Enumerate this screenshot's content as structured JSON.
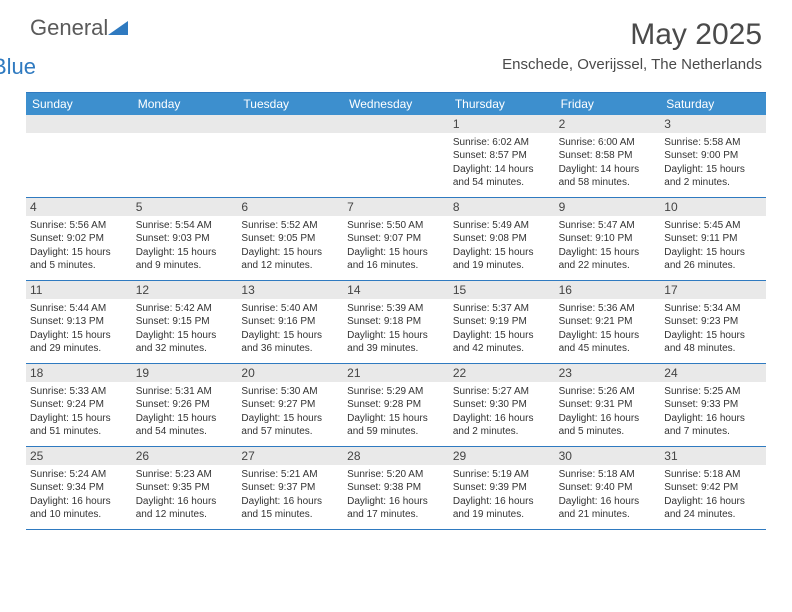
{
  "brand": {
    "part1": "General",
    "part2": "Blue"
  },
  "title": "May 2025",
  "location": "Enschede, Overijssel, The Netherlands",
  "colors": {
    "header_bg": "#3d8fce",
    "border": "#2f7ac0",
    "daynum_bg": "#e9e9e9",
    "text": "#333333",
    "title": "#4a4a4a"
  },
  "day_names": [
    "Sunday",
    "Monday",
    "Tuesday",
    "Wednesday",
    "Thursday",
    "Friday",
    "Saturday"
  ],
  "weeks": [
    [
      null,
      null,
      null,
      null,
      {
        "n": "1",
        "sr": "6:02 AM",
        "ss": "8:57 PM",
        "dl": "14 hours and 54 minutes."
      },
      {
        "n": "2",
        "sr": "6:00 AM",
        "ss": "8:58 PM",
        "dl": "14 hours and 58 minutes."
      },
      {
        "n": "3",
        "sr": "5:58 AM",
        "ss": "9:00 PM",
        "dl": "15 hours and 2 minutes."
      }
    ],
    [
      {
        "n": "4",
        "sr": "5:56 AM",
        "ss": "9:02 PM",
        "dl": "15 hours and 5 minutes."
      },
      {
        "n": "5",
        "sr": "5:54 AM",
        "ss": "9:03 PM",
        "dl": "15 hours and 9 minutes."
      },
      {
        "n": "6",
        "sr": "5:52 AM",
        "ss": "9:05 PM",
        "dl": "15 hours and 12 minutes."
      },
      {
        "n": "7",
        "sr": "5:50 AM",
        "ss": "9:07 PM",
        "dl": "15 hours and 16 minutes."
      },
      {
        "n": "8",
        "sr": "5:49 AM",
        "ss": "9:08 PM",
        "dl": "15 hours and 19 minutes."
      },
      {
        "n": "9",
        "sr": "5:47 AM",
        "ss": "9:10 PM",
        "dl": "15 hours and 22 minutes."
      },
      {
        "n": "10",
        "sr": "5:45 AM",
        "ss": "9:11 PM",
        "dl": "15 hours and 26 minutes."
      }
    ],
    [
      {
        "n": "11",
        "sr": "5:44 AM",
        "ss": "9:13 PM",
        "dl": "15 hours and 29 minutes."
      },
      {
        "n": "12",
        "sr": "5:42 AM",
        "ss": "9:15 PM",
        "dl": "15 hours and 32 minutes."
      },
      {
        "n": "13",
        "sr": "5:40 AM",
        "ss": "9:16 PM",
        "dl": "15 hours and 36 minutes."
      },
      {
        "n": "14",
        "sr": "5:39 AM",
        "ss": "9:18 PM",
        "dl": "15 hours and 39 minutes."
      },
      {
        "n": "15",
        "sr": "5:37 AM",
        "ss": "9:19 PM",
        "dl": "15 hours and 42 minutes."
      },
      {
        "n": "16",
        "sr": "5:36 AM",
        "ss": "9:21 PM",
        "dl": "15 hours and 45 minutes."
      },
      {
        "n": "17",
        "sr": "5:34 AM",
        "ss": "9:23 PM",
        "dl": "15 hours and 48 minutes."
      }
    ],
    [
      {
        "n": "18",
        "sr": "5:33 AM",
        "ss": "9:24 PM",
        "dl": "15 hours and 51 minutes."
      },
      {
        "n": "19",
        "sr": "5:31 AM",
        "ss": "9:26 PM",
        "dl": "15 hours and 54 minutes."
      },
      {
        "n": "20",
        "sr": "5:30 AM",
        "ss": "9:27 PM",
        "dl": "15 hours and 57 minutes."
      },
      {
        "n": "21",
        "sr": "5:29 AM",
        "ss": "9:28 PM",
        "dl": "15 hours and 59 minutes."
      },
      {
        "n": "22",
        "sr": "5:27 AM",
        "ss": "9:30 PM",
        "dl": "16 hours and 2 minutes."
      },
      {
        "n": "23",
        "sr": "5:26 AM",
        "ss": "9:31 PM",
        "dl": "16 hours and 5 minutes."
      },
      {
        "n": "24",
        "sr": "5:25 AM",
        "ss": "9:33 PM",
        "dl": "16 hours and 7 minutes."
      }
    ],
    [
      {
        "n": "25",
        "sr": "5:24 AM",
        "ss": "9:34 PM",
        "dl": "16 hours and 10 minutes."
      },
      {
        "n": "26",
        "sr": "5:23 AM",
        "ss": "9:35 PM",
        "dl": "16 hours and 12 minutes."
      },
      {
        "n": "27",
        "sr": "5:21 AM",
        "ss": "9:37 PM",
        "dl": "16 hours and 15 minutes."
      },
      {
        "n": "28",
        "sr": "5:20 AM",
        "ss": "9:38 PM",
        "dl": "16 hours and 17 minutes."
      },
      {
        "n": "29",
        "sr": "5:19 AM",
        "ss": "9:39 PM",
        "dl": "16 hours and 19 minutes."
      },
      {
        "n": "30",
        "sr": "5:18 AM",
        "ss": "9:40 PM",
        "dl": "16 hours and 21 minutes."
      },
      {
        "n": "31",
        "sr": "5:18 AM",
        "ss": "9:42 PM",
        "dl": "16 hours and 24 minutes."
      }
    ]
  ],
  "labels": {
    "sunrise": "Sunrise:",
    "sunset": "Sunset:",
    "daylight": "Daylight:"
  }
}
